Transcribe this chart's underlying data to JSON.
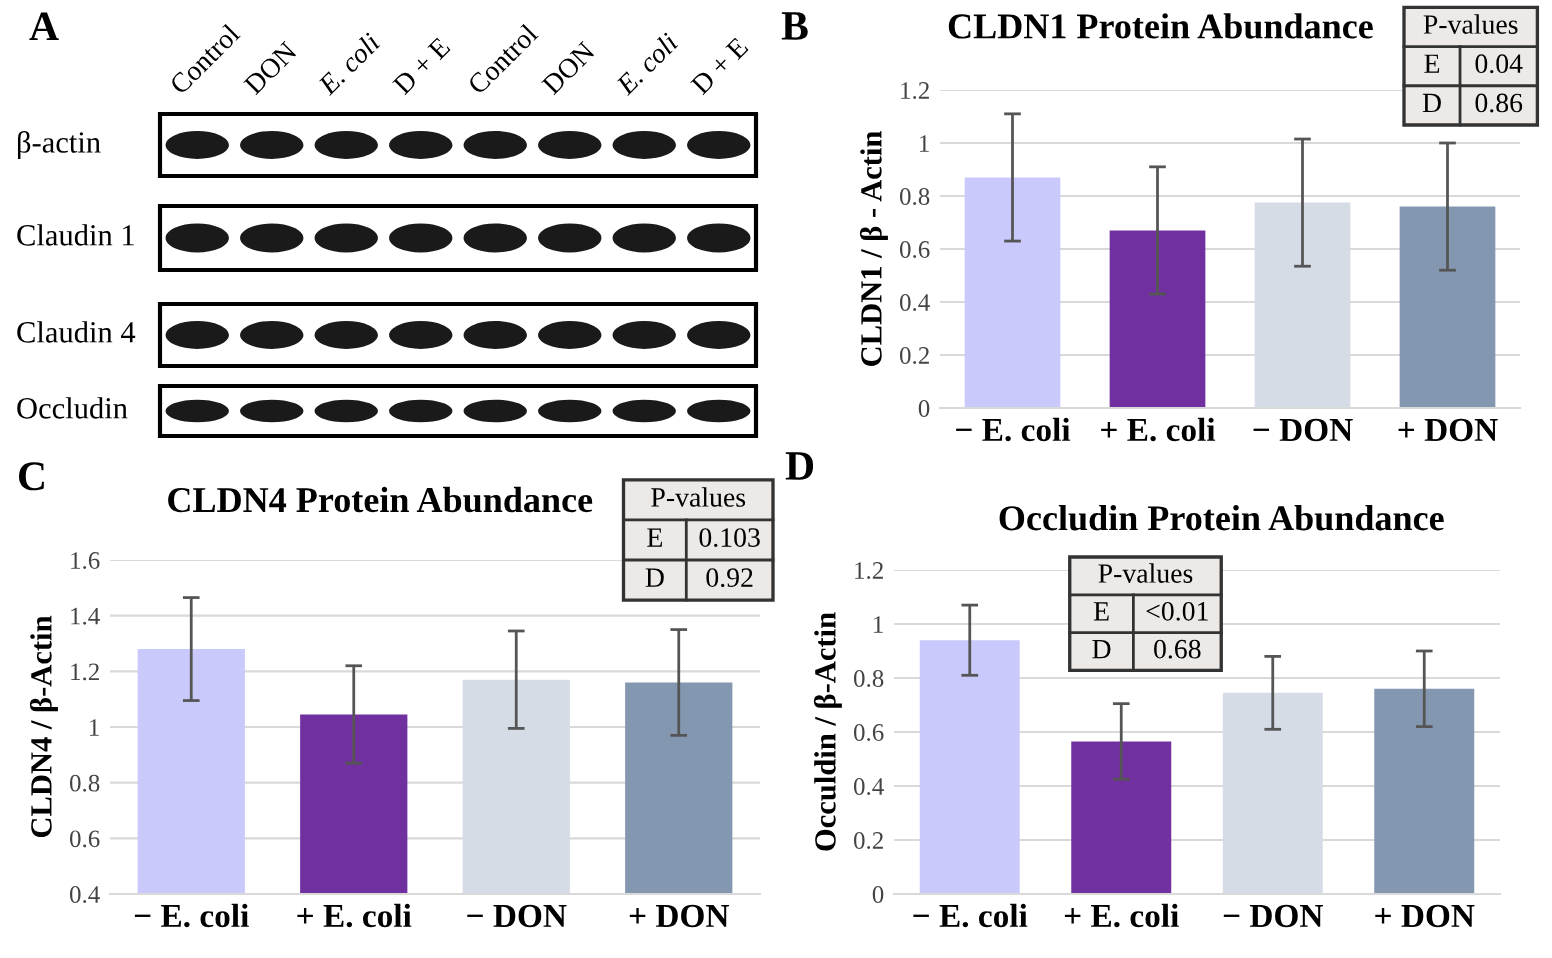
{
  "chart_data": [
    {
      "type": "other",
      "title": "A",
      "annotations": [
        "Control",
        "DON",
        "E. coli",
        "D + E",
        "Control",
        "DON",
        "E. coli",
        "D + E",
        "β-actin",
        "Claudin 1",
        "Claudin 4",
        "Occludin"
      ]
    },
    {
      "type": "bar",
      "title": "CLDN1 Protein Abundance",
      "ylabel": "CLDN1 / β - Actin",
      "categories": [
        "− E. coli",
        "+ E. coli",
        "− DON",
        "+ DON"
      ],
      "values": [
        0.87,
        0.67,
        0.775,
        0.76
      ],
      "errors": [
        0.24,
        0.24,
        0.24,
        0.24
      ],
      "colors": [
        "#c9c9fb",
        "#7030a0",
        "#d6dce5",
        "#8497b0"
      ],
      "ylim": [
        0,
        1.2
      ],
      "yticks": [
        0,
        0.2,
        0.4,
        0.6,
        0.8,
        1,
        1.2
      ],
      "grid": "y",
      "annotations": [
        "B",
        "P-values",
        "E",
        "0.04",
        "D",
        "0.86"
      ]
    },
    {
      "type": "bar",
      "title": "CLDN4 Protein Abundance",
      "ylabel": "CLDN4 / β-Actin",
      "categories": [
        "− E. coli",
        "+ E. coli",
        "− DON",
        "+ DON"
      ],
      "values": [
        1.28,
        1.045,
        1.17,
        1.16
      ],
      "errors": [
        0.185,
        0.175,
        0.175,
        0.19
      ],
      "colors": [
        "#c9c9fb",
        "#7030a0",
        "#d6dce5",
        "#8497b0"
      ],
      "ylim": [
        0.4,
        1.6
      ],
      "yticks": [
        0.4,
        0.6,
        0.8,
        1,
        1.2,
        1.4,
        1.6
      ],
      "grid": "y",
      "annotations": [
        "C",
        "P-values",
        "E",
        "0.103",
        "D",
        "0.92"
      ]
    },
    {
      "type": "bar",
      "title": "Occludin Protein Abundance",
      "ylabel": "Occuldin / β-Actin",
      "categories": [
        "− E. coli",
        "+ E. coli",
        "− DON",
        "+ DON"
      ],
      "values": [
        0.94,
        0.565,
        0.745,
        0.76
      ],
      "errors": [
        0.13,
        0.14,
        0.135,
        0.14
      ],
      "colors": [
        "#c9c9fb",
        "#7030a0",
        "#d6dce5",
        "#8497b0"
      ],
      "ylim": [
        0,
        1.2
      ],
      "yticks": [
        0,
        0.2,
        0.4,
        0.6,
        0.8,
        1,
        1.2
      ],
      "grid": "y",
      "annotations": [
        "D",
        "P-values",
        "E",
        "<0.01",
        "D",
        "0.68"
      ]
    }
  ]
}
